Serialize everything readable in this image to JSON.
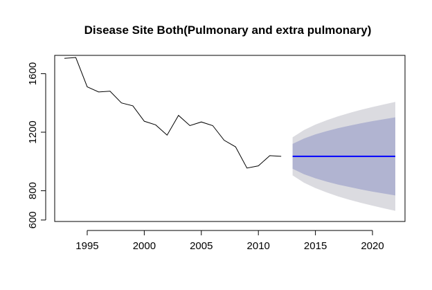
{
  "chart_data": {
    "type": "line",
    "title": "Disease Site Both(Pulmonary and extra pulmonary)",
    "xlabel": "",
    "ylabel": "",
    "xlim": [
      1992.15,
      2022.85
    ],
    "ylim": [
      590,
      1725
    ],
    "x_ticks": [
      1995,
      2000,
      2005,
      2010,
      2015,
      2020
    ],
    "y_ticks": [
      600,
      800,
      1200,
      1600
    ],
    "grid": false,
    "legend": "none",
    "series": [
      {
        "kind": "observed",
        "color": "#000000",
        "x": [
          1993,
          1994,
          1995,
          1996,
          1997,
          1998,
          1999,
          2000,
          2001,
          2002,
          2003,
          2004,
          2005,
          2006,
          2007,
          2008,
          2009,
          2010,
          2011,
          2012
        ],
        "y": [
          1705,
          1710,
          1510,
          1475,
          1480,
          1400,
          1380,
          1275,
          1250,
          1180,
          1315,
          1245,
          1270,
          1245,
          1145,
          1100,
          955,
          970,
          1040,
          1035
        ]
      },
      {
        "kind": "forecast",
        "color": "#0000ff",
        "x": [
          2013,
          2014,
          2015,
          2016,
          2017,
          2018,
          2019,
          2020,
          2021,
          2022
        ],
        "y": [
          1035,
          1035,
          1035,
          1035,
          1035,
          1035,
          1035,
          1035,
          1035,
          1035
        ],
        "lo80": [
          950,
          913,
          885,
          862,
          842,
          825,
          809,
          794,
          781,
          768
        ],
        "hi80": [
          1120,
          1157,
          1185,
          1208,
          1228,
          1245,
          1261,
          1276,
          1289,
          1302
        ],
        "lo95": [
          905,
          855,
          818,
          788,
          761,
          738,
          717,
          698,
          680,
          663
        ],
        "hi95": [
          1165,
          1215,
          1252,
          1282,
          1309,
          1332,
          1353,
          1372,
          1390,
          1407
        ]
      }
    ],
    "colors": {
      "band95": "#dbdbe0",
      "band80": "#b1b4d1",
      "forecast_line": "#0000ff",
      "observed_line": "#000000"
    }
  }
}
